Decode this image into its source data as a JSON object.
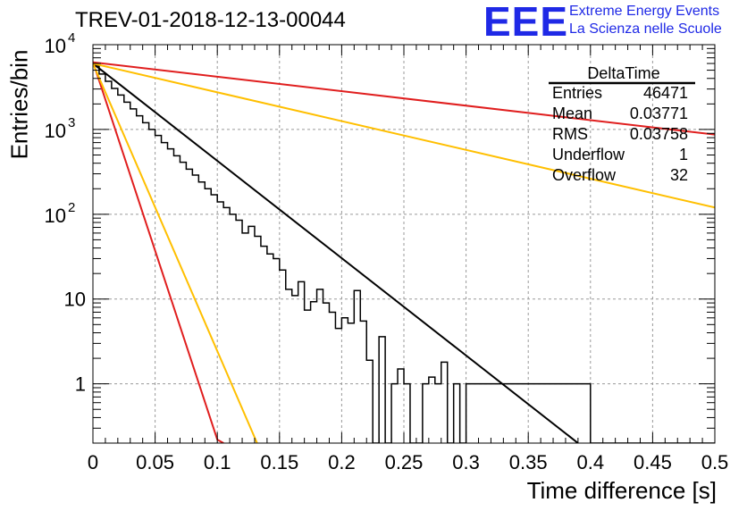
{
  "title": "TREV-01-2018-12-13-00044",
  "logo": {
    "mark": "EEE",
    "line1": "Extreme Energy Events",
    "line2": "La Scienza nelle Scuole"
  },
  "stats": {
    "name": "DeltaTime",
    "rows": [
      {
        "label": "Entries",
        "value": "46471"
      },
      {
        "label": "Mean",
        "value": "0.03771"
      },
      {
        "label": "RMS",
        "value": "0.03758"
      },
      {
        "label": "Underflow",
        "value": "1"
      },
      {
        "label": "Overflow",
        "value": "32"
      }
    ]
  },
  "chart_data": {
    "type": "line",
    "title": "TREV-01-2018-12-13-00044",
    "xlabel": "Time difference [s]",
    "ylabel": "Entries/bin",
    "xlim": [
      0,
      0.5
    ],
    "ylim": [
      0.2,
      10000
    ],
    "yscale": "log",
    "grid": true,
    "x_ticks": [
      "0",
      "0.05",
      "0.1",
      "0.15",
      "0.2",
      "0.25",
      "0.3",
      "0.35",
      "0.4",
      "0.45",
      "0.5"
    ],
    "y_ticks": [
      {
        "value": 1,
        "label": "1"
      },
      {
        "value": 10,
        "label": "10"
      },
      {
        "value": 100,
        "label": "10^2"
      },
      {
        "value": 1000,
        "label": "10^3"
      },
      {
        "value": 10000,
        "label": "10^4"
      }
    ],
    "histogram": {
      "bin_width": 0.005,
      "counts": [
        5600,
        4500,
        3700,
        3050,
        2550,
        2100,
        1750,
        1450,
        1200,
        1000,
        850,
        700,
        590,
        490,
        410,
        340,
        290,
        240,
        200,
        170,
        140,
        120,
        100,
        85,
        60,
        72,
        55,
        42,
        34,
        30,
        22,
        13,
        11,
        16,
        7.4,
        9.3,
        13,
        9.0,
        7.0,
        4.5,
        6.0,
        5.2,
        12.6,
        5.5,
        1.9,
        0.1,
        3.6,
        0.1,
        1.0,
        1.5,
        1.0,
        0.1,
        0.1,
        1.0,
        1.2,
        1.0,
        1.8,
        0.1,
        1.0,
        0.1,
        1.0,
        1.0,
        1.0,
        1.0,
        1.0,
        1.0,
        1.0,
        1.0,
        1.0,
        1.0,
        1.0,
        1.0,
        1.0,
        1.0,
        1.0,
        1.0,
        1.0,
        1.0,
        1.0,
        1.0,
        0.1,
        0.1,
        0.1,
        0.1,
        0.1,
        0.1,
        0.1,
        0.1,
        0.1,
        0.1,
        0.1,
        0.1,
        0.1,
        0.1,
        0.1,
        0.1,
        0.1,
        0.1,
        0.1,
        0.1
      ]
    },
    "series": [
      {
        "color": "#000000",
        "x": [
          0,
          0.39
        ],
        "y": [
          6000,
          0.2
        ],
        "width": 2
      },
      {
        "color": "#e01e1e",
        "x": [
          0,
          0.5
        ],
        "y": [
          6200,
          870
        ],
        "width": 2
      },
      {
        "color": "#e01e1e",
        "x": [
          0,
          0.1,
          0.105
        ],
        "y": [
          6300,
          0.22,
          0.2
        ],
        "width": 2
      },
      {
        "color": "#ffbf00",
        "x": [
          0,
          0.5
        ],
        "y": [
          6000,
          120
        ],
        "width": 2
      },
      {
        "color": "#ffbf00",
        "x": [
          0,
          0.132
        ],
        "y": [
          6000,
          0.2
        ],
        "width": 2
      }
    ]
  }
}
